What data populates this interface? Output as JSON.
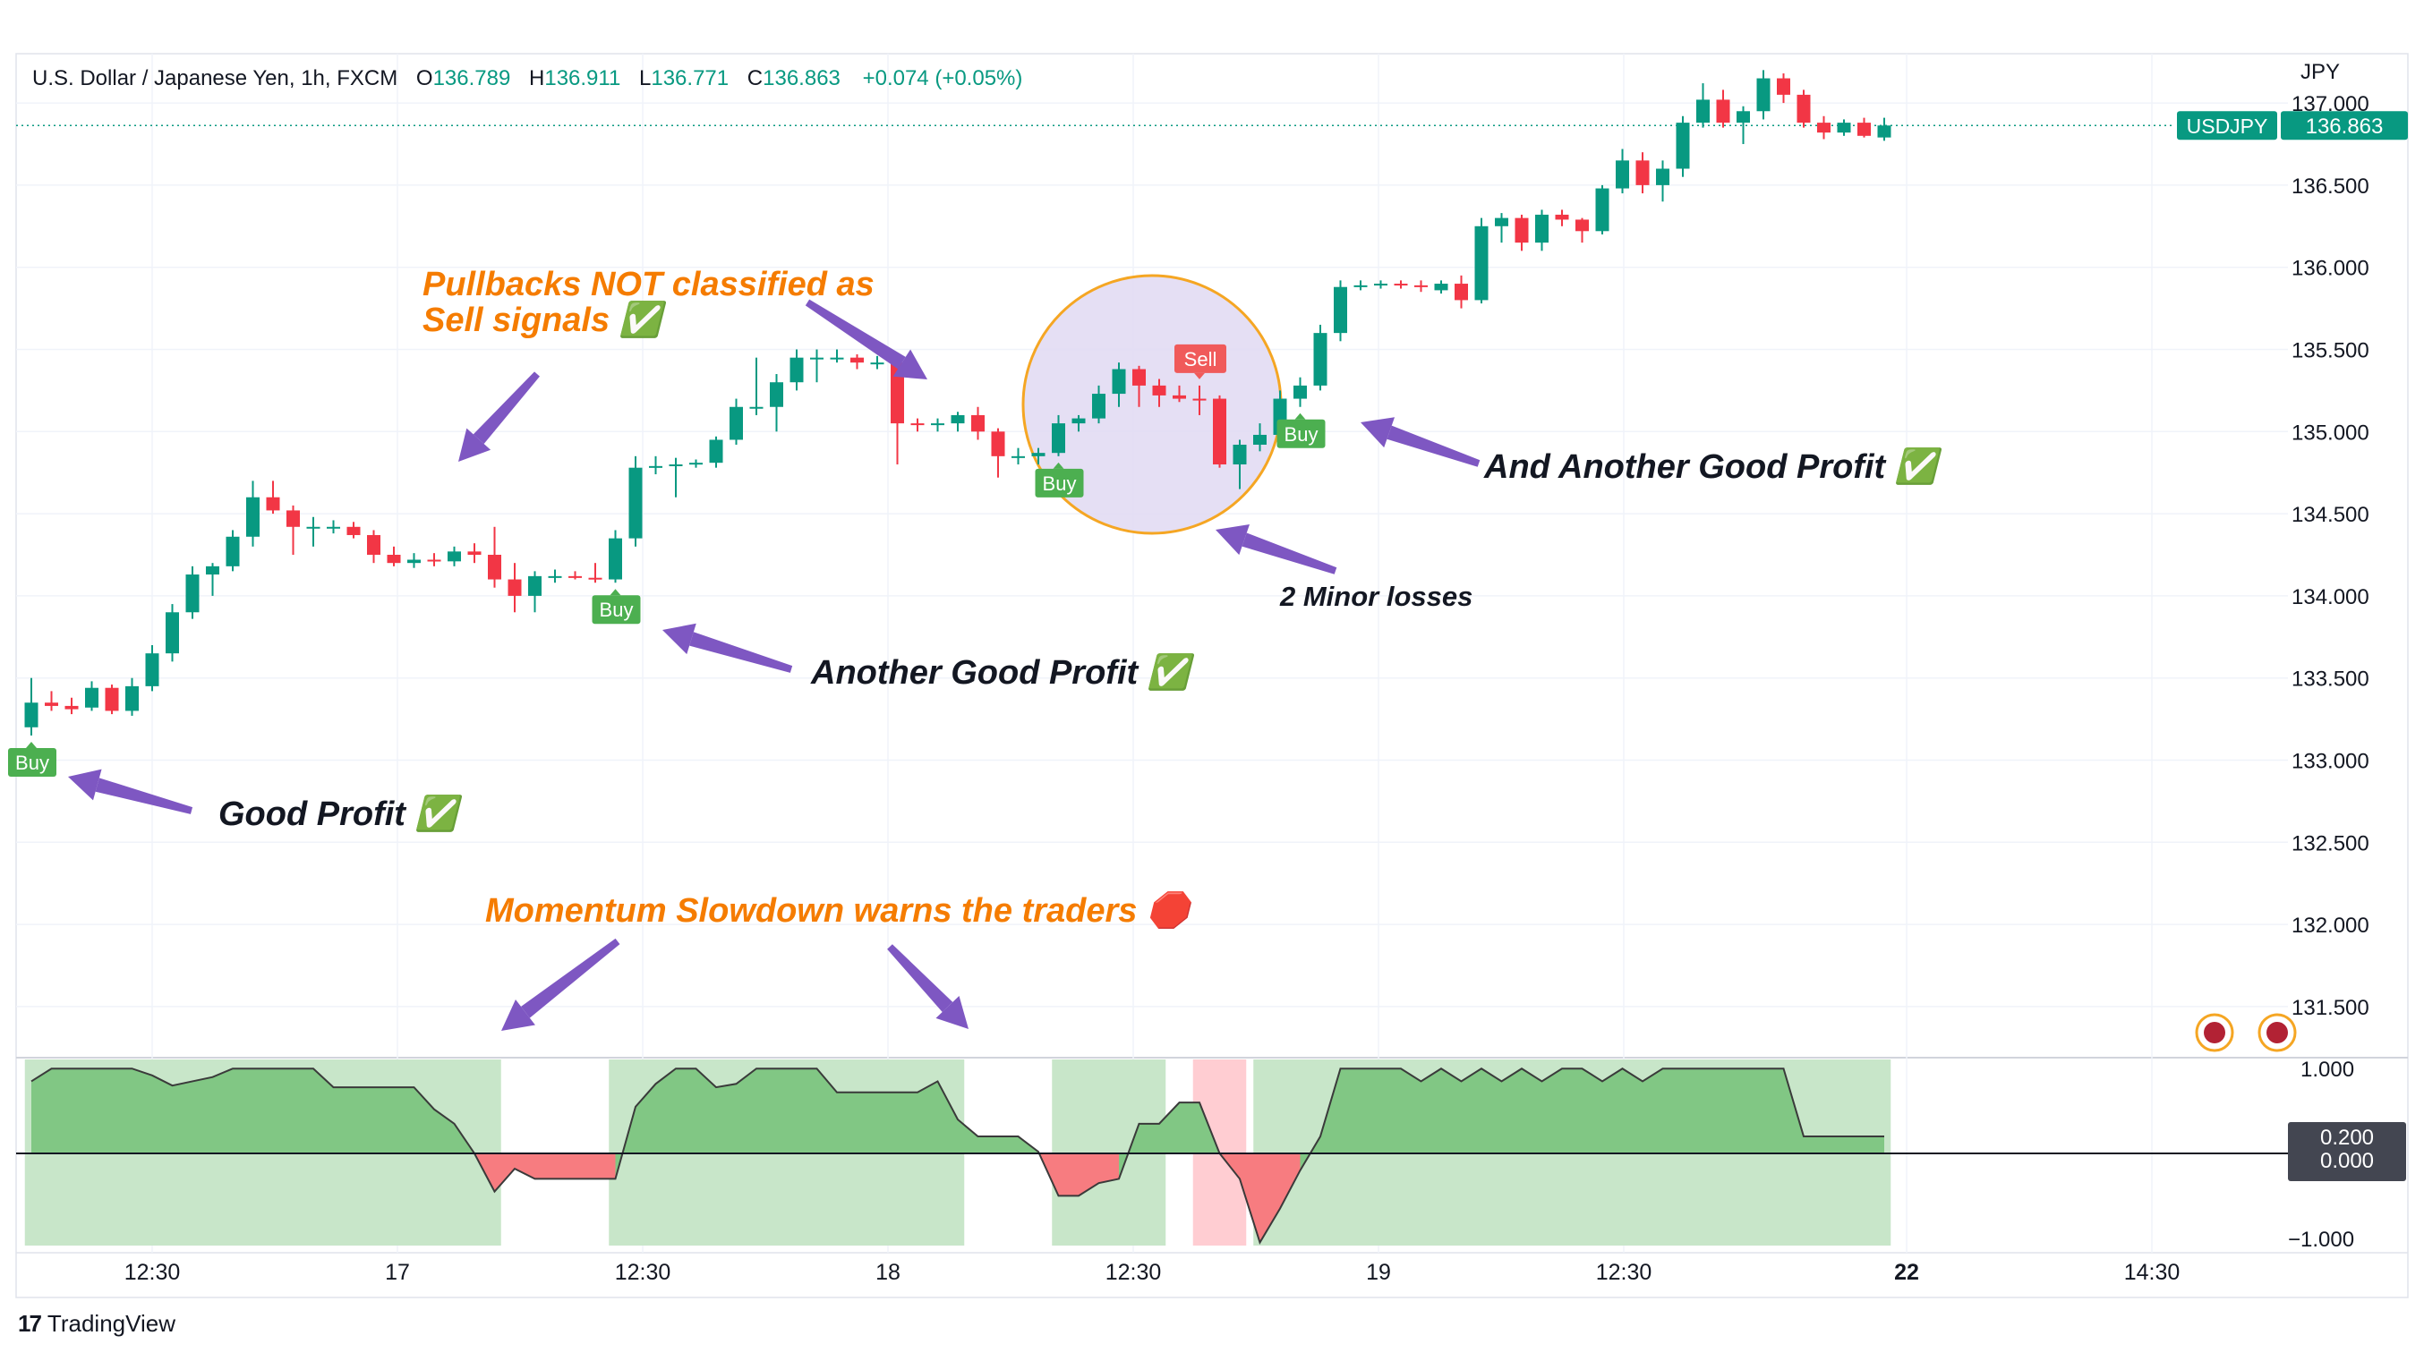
{
  "header": {
    "symbol": "U.S. Dollar / Japanese Yen, 1h, FXCM",
    "o_label": "O",
    "o": "136.789",
    "h_label": "H",
    "h": "136.911",
    "l_label": "L",
    "l": "136.771",
    "c_label": "C",
    "c": "136.863",
    "change": "+0.074 (+0.05%)"
  },
  "price_axis": {
    "currency": "JPY",
    "ticks": [
      "137.000",
      "136.500",
      "136.000",
      "135.500",
      "135.000",
      "134.500",
      "134.000",
      "133.500",
      "133.000",
      "132.500",
      "132.000",
      "131.500"
    ],
    "last_symbol": "USDJPY",
    "last_price": "136.863"
  },
  "osc_axis": {
    "ticks": [
      "1.000",
      "−1.000"
    ],
    "badge_values": [
      "0.200",
      "0.000"
    ]
  },
  "time_axis": {
    "ticks": [
      "12:30",
      "17",
      "12:30",
      "18",
      "12:30",
      "19",
      "12:30",
      "22",
      "14:30"
    ]
  },
  "signals": {
    "buy": "Buy",
    "sell": "Sell"
  },
  "annotations": {
    "pullbacks_line1": "Pullbacks NOT classified as",
    "pullbacks_line2": "Sell signals ✅",
    "good_profit": "Good Profit ✅",
    "another_good_profit": "Another Good Profit ✅",
    "and_another_good_profit": "And Another Good Profit ✅",
    "minor_losses": "2 Minor losses",
    "momentum": "Momentum Slowdown warns the traders 🛑"
  },
  "footer": {
    "brand": "TradingView",
    "logo": "17"
  },
  "colors": {
    "up": "#089981",
    "down": "#f23645",
    "buy": "#4caf50",
    "sell": "#f05a5a",
    "annotation_orange": "#f57c00",
    "arrow": "#7e57c2",
    "circle_fill": "#e1d9f2",
    "circle_stroke": "#f5a623",
    "osc_pos": "#81c784",
    "osc_neg": "#f77c80",
    "zone_green": "#c8e6c9",
    "zone_red": "#ffcdd2"
  },
  "chart_data": {
    "type": "candlestick",
    "symbol": "USDJPY",
    "interval": "1h",
    "ylim": [
      131.2,
      137.3
    ],
    "candles": [
      {
        "o": 133.2,
        "h": 133.5,
        "l": 133.15,
        "c": 133.35
      },
      {
        "o": 133.35,
        "h": 133.42,
        "l": 133.3,
        "c": 133.33
      },
      {
        "o": 133.33,
        "h": 133.38,
        "l": 133.28,
        "c": 133.31
      },
      {
        "o": 133.32,
        "h": 133.48,
        "l": 133.3,
        "c": 133.44
      },
      {
        "o": 133.44,
        "h": 133.46,
        "l": 133.28,
        "c": 133.3
      },
      {
        "o": 133.3,
        "h": 133.5,
        "l": 133.27,
        "c": 133.45
      },
      {
        "o": 133.45,
        "h": 133.7,
        "l": 133.42,
        "c": 133.65
      },
      {
        "o": 133.65,
        "h": 133.95,
        "l": 133.6,
        "c": 133.9
      },
      {
        "o": 133.9,
        "h": 134.18,
        "l": 133.86,
        "c": 134.13
      },
      {
        "o": 134.13,
        "h": 134.2,
        "l": 134.0,
        "c": 134.18
      },
      {
        "o": 134.18,
        "h": 134.4,
        "l": 134.15,
        "c": 134.36
      },
      {
        "o": 134.36,
        "h": 134.7,
        "l": 134.3,
        "c": 134.6
      },
      {
        "o": 134.6,
        "h": 134.7,
        "l": 134.5,
        "c": 134.52
      },
      {
        "o": 134.52,
        "h": 134.55,
        "l": 134.25,
        "c": 134.42
      },
      {
        "o": 134.42,
        "h": 134.48,
        "l": 134.3,
        "c": 134.42
      },
      {
        "o": 134.41,
        "h": 134.46,
        "l": 134.38,
        "c": 134.42
      },
      {
        "o": 134.42,
        "h": 134.45,
        "l": 134.35,
        "c": 134.37
      },
      {
        "o": 134.37,
        "h": 134.4,
        "l": 134.2,
        "c": 134.25
      },
      {
        "o": 134.25,
        "h": 134.3,
        "l": 134.18,
        "c": 134.2
      },
      {
        "o": 134.2,
        "h": 134.26,
        "l": 134.17,
        "c": 134.22
      },
      {
        "o": 134.22,
        "h": 134.26,
        "l": 134.18,
        "c": 134.21
      },
      {
        "o": 134.21,
        "h": 134.3,
        "l": 134.18,
        "c": 134.27
      },
      {
        "o": 134.27,
        "h": 134.32,
        "l": 134.2,
        "c": 134.25
      },
      {
        "o": 134.25,
        "h": 134.42,
        "l": 134.05,
        "c": 134.1
      },
      {
        "o": 134.1,
        "h": 134.2,
        "l": 133.9,
        "c": 134.0
      },
      {
        "o": 134.0,
        "h": 134.15,
        "l": 133.9,
        "c": 134.12
      },
      {
        "o": 134.12,
        "h": 134.16,
        "l": 134.08,
        "c": 134.12
      },
      {
        "o": 134.12,
        "h": 134.15,
        "l": 134.1,
        "c": 134.11
      },
      {
        "o": 134.11,
        "h": 134.2,
        "l": 134.08,
        "c": 134.1
      },
      {
        "o": 134.1,
        "h": 134.4,
        "l": 134.08,
        "c": 134.35
      },
      {
        "o": 134.35,
        "h": 134.85,
        "l": 134.3,
        "c": 134.78
      },
      {
        "o": 134.78,
        "h": 134.85,
        "l": 134.74,
        "c": 134.79
      },
      {
        "o": 134.79,
        "h": 134.84,
        "l": 134.6,
        "c": 134.8
      },
      {
        "o": 134.8,
        "h": 134.83,
        "l": 134.78,
        "c": 134.81
      },
      {
        "o": 134.81,
        "h": 134.97,
        "l": 134.78,
        "c": 134.95
      },
      {
        "o": 134.95,
        "h": 135.2,
        "l": 134.92,
        "c": 135.15
      },
      {
        "o": 135.15,
        "h": 135.45,
        "l": 135.1,
        "c": 135.15
      },
      {
        "o": 135.15,
        "h": 135.35,
        "l": 135.0,
        "c": 135.3
      },
      {
        "o": 135.3,
        "h": 135.5,
        "l": 135.25,
        "c": 135.45
      },
      {
        "o": 135.45,
        "h": 135.5,
        "l": 135.3,
        "c": 135.45
      },
      {
        "o": 135.45,
        "h": 135.5,
        "l": 135.42,
        "c": 135.45
      },
      {
        "o": 135.45,
        "h": 135.47,
        "l": 135.38,
        "c": 135.42
      },
      {
        "o": 135.42,
        "h": 135.46,
        "l": 135.38,
        "c": 135.42
      },
      {
        "o": 135.42,
        "h": 135.45,
        "l": 134.8,
        "c": 135.05
      },
      {
        "o": 135.05,
        "h": 135.08,
        "l": 135.0,
        "c": 135.04
      },
      {
        "o": 135.04,
        "h": 135.08,
        "l": 135.0,
        "c": 135.05
      },
      {
        "o": 135.05,
        "h": 135.12,
        "l": 135.0,
        "c": 135.1
      },
      {
        "o": 135.1,
        "h": 135.15,
        "l": 134.95,
        "c": 135.0
      },
      {
        "o": 135.0,
        "h": 135.02,
        "l": 134.72,
        "c": 134.85
      },
      {
        "o": 134.85,
        "h": 134.9,
        "l": 134.8,
        "c": 134.85
      },
      {
        "o": 134.85,
        "h": 134.9,
        "l": 134.8,
        "c": 134.87
      },
      {
        "o": 134.87,
        "h": 135.1,
        "l": 134.85,
        "c": 135.05
      },
      {
        "o": 135.05,
        "h": 135.1,
        "l": 135.0,
        "c": 135.08
      },
      {
        "o": 135.08,
        "h": 135.28,
        "l": 135.05,
        "c": 135.23
      },
      {
        "o": 135.23,
        "h": 135.42,
        "l": 135.15,
        "c": 135.38
      },
      {
        "o": 135.38,
        "h": 135.4,
        "l": 135.15,
        "c": 135.28
      },
      {
        "o": 135.28,
        "h": 135.32,
        "l": 135.15,
        "c": 135.22
      },
      {
        "o": 135.22,
        "h": 135.28,
        "l": 135.18,
        "c": 135.2
      },
      {
        "o": 135.2,
        "h": 135.28,
        "l": 135.1,
        "c": 135.19
      },
      {
        "o": 135.2,
        "h": 135.22,
        "l": 134.78,
        "c": 134.8
      },
      {
        "o": 134.8,
        "h": 134.95,
        "l": 134.65,
        "c": 134.92
      },
      {
        "o": 134.92,
        "h": 135.05,
        "l": 134.88,
        "c": 134.98
      },
      {
        "o": 134.98,
        "h": 135.25,
        "l": 134.95,
        "c": 135.2
      },
      {
        "o": 135.2,
        "h": 135.33,
        "l": 135.15,
        "c": 135.28
      },
      {
        "o": 135.28,
        "h": 135.65,
        "l": 135.25,
        "c": 135.6
      },
      {
        "o": 135.6,
        "h": 135.92,
        "l": 135.55,
        "c": 135.88
      },
      {
        "o": 135.88,
        "h": 135.92,
        "l": 135.86,
        "c": 135.89
      },
      {
        "o": 135.89,
        "h": 135.92,
        "l": 135.87,
        "c": 135.9
      },
      {
        "o": 135.9,
        "h": 135.92,
        "l": 135.87,
        "c": 135.89
      },
      {
        "o": 135.89,
        "h": 135.92,
        "l": 135.85,
        "c": 135.88
      },
      {
        "o": 135.86,
        "h": 135.92,
        "l": 135.84,
        "c": 135.9
      },
      {
        "o": 135.9,
        "h": 135.95,
        "l": 135.75,
        "c": 135.8
      },
      {
        "o": 135.8,
        "h": 136.3,
        "l": 135.78,
        "c": 136.25
      },
      {
        "o": 136.25,
        "h": 136.33,
        "l": 136.15,
        "c": 136.3
      },
      {
        "o": 136.3,
        "h": 136.32,
        "l": 136.1,
        "c": 136.15
      },
      {
        "o": 136.15,
        "h": 136.35,
        "l": 136.1,
        "c": 136.32
      },
      {
        "o": 136.32,
        "h": 136.35,
        "l": 136.25,
        "c": 136.29
      },
      {
        "o": 136.29,
        "h": 136.3,
        "l": 136.15,
        "c": 136.22
      },
      {
        "o": 136.22,
        "h": 136.5,
        "l": 136.2,
        "c": 136.48
      },
      {
        "o": 136.48,
        "h": 136.72,
        "l": 136.45,
        "c": 136.65
      },
      {
        "o": 136.65,
        "h": 136.7,
        "l": 136.45,
        "c": 136.5
      },
      {
        "o": 136.5,
        "h": 136.65,
        "l": 136.4,
        "c": 136.6
      },
      {
        "o": 136.6,
        "h": 136.92,
        "l": 136.55,
        "c": 136.88
      },
      {
        "o": 136.88,
        "h": 137.12,
        "l": 136.85,
        "c": 137.02
      },
      {
        "o": 137.02,
        "h": 137.08,
        "l": 136.85,
        "c": 136.88
      },
      {
        "o": 136.88,
        "h": 136.98,
        "l": 136.75,
        "c": 136.95
      },
      {
        "o": 136.95,
        "h": 137.2,
        "l": 136.9,
        "c": 137.15
      },
      {
        "o": 137.15,
        "h": 137.18,
        "l": 137.0,
        "c": 137.05
      },
      {
        "o": 137.05,
        "h": 137.08,
        "l": 136.85,
        "c": 136.88
      },
      {
        "o": 136.88,
        "h": 136.92,
        "l": 136.78,
        "c": 136.82
      },
      {
        "o": 136.82,
        "h": 136.9,
        "l": 136.8,
        "c": 136.88
      },
      {
        "o": 136.88,
        "h": 136.91,
        "l": 136.79,
        "c": 136.8
      },
      {
        "o": 136.79,
        "h": 136.91,
        "l": 136.77,
        "c": 136.863
      }
    ],
    "signals": [
      {
        "type": "Buy",
        "bar": 0
      },
      {
        "type": "Buy",
        "bar": 29
      },
      {
        "type": "Buy",
        "bar": 51
      },
      {
        "type": "Sell",
        "bar": 58
      },
      {
        "type": "Buy",
        "bar": 63
      }
    ],
    "oscillator": {
      "ylim": [
        -1.15,
        1.15
      ],
      "values": [
        0.85,
        1.0,
        1.0,
        1.0,
        1.0,
        1.0,
        0.92,
        0.8,
        0.85,
        0.9,
        1.0,
        1.0,
        1.0,
        1.0,
        1.0,
        0.78,
        0.78,
        0.78,
        0.78,
        0.78,
        0.52,
        0.35,
        0.0,
        -0.45,
        -0.18,
        -0.3,
        -0.3,
        -0.3,
        -0.3,
        -0.3,
        0.55,
        0.82,
        1.0,
        1.0,
        0.78,
        0.82,
        1.0,
        1.0,
        1.0,
        1.0,
        0.72,
        0.72,
        0.72,
        0.72,
        0.72,
        0.85,
        0.4,
        0.2,
        0.2,
        0.2,
        0.02,
        -0.5,
        -0.5,
        -0.35,
        -0.3,
        0.35,
        0.35,
        0.6,
        0.6,
        0.0,
        -0.3,
        -1.05,
        -0.65,
        -0.2,
        0.2,
        1.0,
        1.0,
        1.0,
        1.0,
        0.85,
        1.0,
        0.85,
        1.0,
        0.85,
        1.0,
        0.85,
        1.0,
        1.0,
        0.85,
        1.0,
        0.85,
        1.0,
        1.0,
        1.0,
        1.0,
        1.0,
        1.0,
        1.0,
        0.2,
        0.2,
        0.2,
        0.2,
        0.2
      ]
    },
    "zones": [
      {
        "color": "green",
        "from": 0,
        "to": 23
      },
      {
        "color": "green",
        "from": 29,
        "to": 46
      },
      {
        "color": "green",
        "from": 51,
        "to": 56
      },
      {
        "color": "red",
        "from": 58,
        "to": 60
      },
      {
        "color": "green",
        "from": 61,
        "to": 92
      }
    ]
  }
}
